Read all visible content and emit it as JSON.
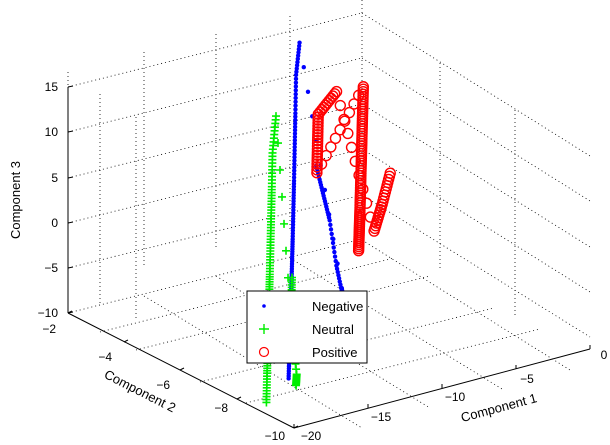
{
  "chart_data": {
    "type": "scatter",
    "projection": "3d",
    "title": "",
    "xlabel": "Component 1",
    "ylabel": "Component 2",
    "zlabel": "Component 3",
    "xlim": [
      -20,
      0
    ],
    "ylim": [
      -10,
      -2
    ],
    "zlim": [
      -10,
      15
    ],
    "x_ticks": [
      "0",
      "−5",
      "−10",
      "−15",
      "−20"
    ],
    "y_ticks": [
      "−2",
      "−4",
      "−6",
      "−8",
      "−10"
    ],
    "z_ticks": [
      "15",
      "10",
      "5",
      "0",
      "−5",
      "−10"
    ],
    "grid": true,
    "legend_position": "bottom-center",
    "series": [
      {
        "name": "Negative",
        "marker": "dot",
        "color": "#0000ff",
        "points": [
          [
            -17.5,
            -8.5,
            -8.0
          ],
          [
            -16.5,
            -8.0,
            -6.5
          ],
          [
            -15.5,
            -7.5,
            -5.0
          ],
          [
            -14.5,
            -7.0,
            -4.0
          ],
          [
            -13.5,
            -6.5,
            -3.0
          ],
          [
            -12.5,
            -6.0,
            -1.5
          ],
          [
            -11.5,
            -5.5,
            0.0
          ],
          [
            -10.5,
            -5.0,
            2.0
          ],
          [
            -9.5,
            -4.5,
            4.0
          ],
          [
            -8.5,
            -4.0,
            6.5
          ],
          [
            -7.5,
            -3.5,
            9.0
          ],
          [
            -6.5,
            -3.0,
            12.0
          ],
          [
            -5.5,
            -2.6,
            14.5
          ],
          [
            -12.0,
            -7.5,
            -2.0
          ],
          [
            -11.0,
            -7.0,
            -4.0
          ],
          [
            -10.0,
            -6.5,
            -5.5
          ],
          [
            -9.5,
            -6.0,
            -3.0
          ],
          [
            -9.0,
            -5.5,
            1.0
          ],
          [
            -8.5,
            -5.0,
            3.0
          ],
          [
            -8.0,
            -4.5,
            5.0
          ]
        ]
      },
      {
        "name": "Neutral",
        "marker": "plus",
        "color": "#00ee00",
        "points": [
          [
            -19.0,
            -8.5,
            -10.0
          ],
          [
            -18.0,
            -8.0,
            -8.0
          ],
          [
            -17.0,
            -7.5,
            -6.5
          ],
          [
            -16.0,
            -7.0,
            -5.0
          ],
          [
            -15.0,
            -6.5,
            -3.5
          ],
          [
            -14.0,
            -6.0,
            -2.0
          ],
          [
            -13.0,
            -5.5,
            0.0
          ],
          [
            -12.0,
            -5.0,
            2.0
          ],
          [
            -11.0,
            -4.5,
            4.0
          ],
          [
            -10.0,
            -4.0,
            6.5
          ],
          [
            -9.0,
            -3.6,
            9.5
          ],
          [
            -17.0,
            -8.5,
            -9.0
          ],
          [
            -16.0,
            -8.0,
            -9.0
          ],
          [
            -14.5,
            -7.0,
            -5.5
          ],
          [
            -13.5,
            -6.5,
            -4.5
          ],
          [
            -12.5,
            -6.0,
            -3.0
          ]
        ]
      },
      {
        "name": "Positive",
        "marker": "circle",
        "color": "#ff0000",
        "points": [
          [
            -8.0,
            -6.0,
            -2.0
          ],
          [
            -7.0,
            -5.5,
            -1.0
          ],
          [
            -6.0,
            -5.0,
            0.0
          ],
          [
            -5.0,
            -4.5,
            1.5
          ],
          [
            -4.0,
            -4.0,
            3.0
          ],
          [
            -3.0,
            -3.5,
            4.5
          ],
          [
            -2.0,
            -3.0,
            6.0
          ],
          [
            -1.0,
            -2.5,
            7.5
          ],
          [
            -7.0,
            -4.0,
            3.0
          ],
          [
            -6.0,
            -3.5,
            5.0
          ],
          [
            -5.0,
            -3.0,
            7.0
          ],
          [
            -3.0,
            -2.6,
            8.0
          ],
          [
            -6.0,
            -5.5,
            -1.5
          ],
          [
            -4.5,
            -5.0,
            0.0
          ],
          [
            -3.0,
            -4.5,
            2.0
          ]
        ]
      }
    ]
  }
}
